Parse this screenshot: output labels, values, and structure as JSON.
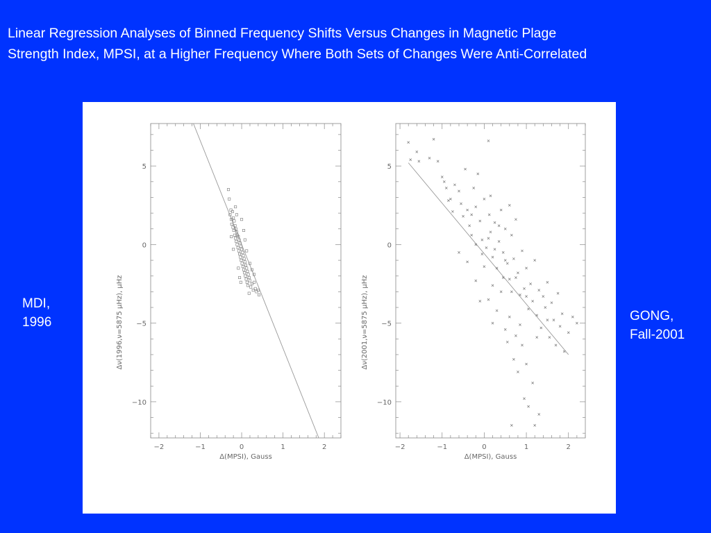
{
  "slide": {
    "title_line1": "Linear Regression Analyses of Binned Frequency Shifts Versus Changes in Magnetic Plage",
    "title_line2": "Strength Index, MPSI, at a Higher Frequency Where Both Sets of Changes Were Anti-Correlated",
    "left_label_line1": "MDI,",
    "left_label_line2": "1996",
    "right_label_line1": "GONG,",
    "right_label_line2": "Fall-2001",
    "background_color": "#0033FF",
    "text_color": "#FFFFFF"
  },
  "chart_data": [
    {
      "type": "scatter",
      "xlabel": "Δ(MPSI), Gauss",
      "ylabel": "Δν(1996,ν=5875 μHz), μHz",
      "xlim": [
        -2.2,
        2.4
      ],
      "ylim": [
        -12.3,
        7.7
      ],
      "x_ticks": [
        -2,
        -1,
        0,
        1,
        2
      ],
      "y_ticks": [
        5,
        0,
        -5,
        -10
      ],
      "x_tick_labels": [
        "−2",
        "−1",
        "0",
        "1",
        "2"
      ],
      "y_tick_labels": [
        "5",
        "0",
        "−5",
        "−10"
      ],
      "marker": "square",
      "fit_line": {
        "slope": -6.6,
        "intercept": 0.0
      },
      "points": [
        [
          -0.32,
          3.5
        ],
        [
          -0.3,
          2.9
        ],
        [
          -0.26,
          2.2
        ],
        [
          -0.28,
          1.9
        ],
        [
          -0.22,
          2.1
        ],
        [
          -0.25,
          1.6
        ],
        [
          -0.2,
          1.7
        ],
        [
          -0.24,
          1.3
        ],
        [
          -0.18,
          1.5
        ],
        [
          -0.21,
          1.1
        ],
        [
          -0.16,
          1.2
        ],
        [
          -0.19,
          0.9
        ],
        [
          -0.14,
          1.0
        ],
        [
          -0.17,
          0.6
        ],
        [
          -0.12,
          0.8
        ],
        [
          -0.15,
          0.4
        ],
        [
          -0.1,
          0.6
        ],
        [
          -0.13,
          0.2
        ],
        [
          -0.08,
          0.5
        ],
        [
          -0.11,
          0.0
        ],
        [
          -0.06,
          0.3
        ],
        [
          -0.09,
          -0.2
        ],
        [
          -0.04,
          0.1
        ],
        [
          -0.07,
          -0.4
        ],
        [
          -0.02,
          -0.1
        ],
        [
          -0.05,
          -0.6
        ],
        [
          0.0,
          -0.3
        ],
        [
          -0.03,
          -0.8
        ],
        [
          0.02,
          -0.5
        ],
        [
          -0.01,
          -1.0
        ],
        [
          0.04,
          -0.7
        ],
        [
          0.01,
          -1.2
        ],
        [
          0.06,
          -0.9
        ],
        [
          0.03,
          -1.4
        ],
        [
          0.08,
          -1.1
        ],
        [
          0.05,
          -1.6
        ],
        [
          0.1,
          -1.3
        ],
        [
          0.07,
          -1.8
        ],
        [
          0.12,
          -1.5
        ],
        [
          0.09,
          -2.0
        ],
        [
          0.14,
          -1.7
        ],
        [
          0.11,
          -2.2
        ],
        [
          0.16,
          -1.9
        ],
        [
          0.13,
          -2.4
        ],
        [
          0.18,
          -2.1
        ],
        [
          0.15,
          -2.6
        ],
        [
          0.2,
          -2.3
        ],
        [
          0.22,
          -2.7
        ],
        [
          0.25,
          -2.5
        ],
        [
          0.28,
          -2.9
        ],
        [
          0.3,
          -2.4
        ],
        [
          0.33,
          -2.8
        ],
        [
          0.36,
          -3.0
        ],
        [
          0.4,
          -2.9
        ],
        [
          0.42,
          -3.2
        ],
        [
          -0.05,
          -2.1
        ],
        [
          -0.25,
          0.5
        ],
        [
          -0.15,
          2.4
        ],
        [
          0.0,
          1.6
        ],
        [
          0.08,
          0.3
        ],
        [
          -0.2,
          -0.3
        ],
        [
          0.12,
          -0.4
        ],
        [
          0.2,
          -1.2
        ],
        [
          -0.02,
          -2.4
        ],
        [
          0.25,
          -1.6
        ],
        [
          -0.12,
          1.9
        ],
        [
          0.05,
          0.9
        ],
        [
          0.18,
          -3.1
        ],
        [
          -0.08,
          -1.5
        ],
        [
          0.3,
          -1.9
        ]
      ]
    },
    {
      "type": "scatter",
      "xlabel": "Δ(MPSI), Gauss",
      "ylabel": "Δν(2001,ν=5875 μHz), μHz",
      "xlim": [
        -2.1,
        2.4
      ],
      "ylim": [
        -12.3,
        7.7
      ],
      "x_ticks": [
        -2,
        -1,
        0,
        1,
        2
      ],
      "y_ticks": [
        5,
        0,
        -5,
        -10
      ],
      "x_tick_labels": [
        "−2",
        "−1",
        "0",
        "1",
        "2"
      ],
      "y_tick_labels": [
        "5",
        "0",
        "−5",
        "−10"
      ],
      "marker": "cross",
      "fit_line": {
        "x0": -1.8,
        "y0": 5.2,
        "x1": 2.0,
        "y1": -7.0
      },
      "points": [
        [
          -1.8,
          6.5
        ],
        [
          -1.75,
          5.4
        ],
        [
          -1.6,
          5.9
        ],
        [
          -1.55,
          5.3
        ],
        [
          -1.3,
          5.5
        ],
        [
          -1.2,
          6.7
        ],
        [
          -1.1,
          5.3
        ],
        [
          -1.0,
          4.3
        ],
        [
          -0.95,
          4.0
        ],
        [
          -0.9,
          3.6
        ],
        [
          -0.85,
          2.8
        ],
        [
          -0.8,
          2.9
        ],
        [
          -0.75,
          2.1
        ],
        [
          -0.7,
          3.8
        ],
        [
          -0.6,
          3.4
        ],
        [
          -0.55,
          2.6
        ],
        [
          -0.5,
          1.8
        ],
        [
          -0.45,
          4.8
        ],
        [
          -0.4,
          2.2
        ],
        [
          -0.35,
          1.2
        ],
        [
          -0.3,
          0.6
        ],
        [
          -0.25,
          3.6
        ],
        [
          -0.2,
          2.4
        ],
        [
          -0.15,
          4.5
        ],
        [
          -0.1,
          1.5
        ],
        [
          -0.05,
          0.3
        ],
        [
          0.0,
          2.9
        ],
        [
          0.05,
          -0.2
        ],
        [
          0.1,
          6.6
        ],
        [
          0.12,
          1.9
        ],
        [
          0.15,
          0.8
        ],
        [
          0.2,
          -0.8
        ],
        [
          0.25,
          1.4
        ],
        [
          0.3,
          -1.5
        ],
        [
          0.35,
          0.2
        ],
        [
          0.4,
          2.2
        ],
        [
          0.45,
          -0.5
        ],
        [
          0.5,
          1.0
        ],
        [
          0.55,
          -1.2
        ],
        [
          0.6,
          -2.2
        ],
        [
          0.65,
          0.6
        ],
        [
          0.7,
          -0.9
        ],
        [
          0.75,
          1.6
        ],
        [
          0.8,
          -1.8
        ],
        [
          0.85,
          -3.2
        ],
        [
          0.9,
          -0.4
        ],
        [
          0.95,
          -2.8
        ],
        [
          1.0,
          -1.5
        ],
        [
          1.05,
          -4.1
        ],
        [
          1.1,
          -2.5
        ],
        [
          1.15,
          -3.6
        ],
        [
          1.2,
          -1.0
        ],
        [
          1.25,
          -4.5
        ],
        [
          1.3,
          -2.9
        ],
        [
          1.35,
          -5.3
        ],
        [
          1.4,
          -3.3
        ],
        [
          1.45,
          -4.0
        ],
        [
          1.5,
          -2.4
        ],
        [
          1.55,
          -5.9
        ],
        [
          1.6,
          -3.7
        ],
        [
          1.65,
          -4.8
        ],
        [
          1.7,
          -6.4
        ],
        [
          1.75,
          -3.1
        ],
        [
          1.8,
          -5.2
        ],
        [
          1.85,
          -4.4
        ],
        [
          1.9,
          -6.8
        ],
        [
          2.0,
          -5.6
        ],
        [
          2.1,
          -4.6
        ],
        [
          2.2,
          -5.0
        ],
        [
          -0.6,
          -0.5
        ],
        [
          -0.4,
          -1.1
        ],
        [
          -0.2,
          -2.3
        ],
        [
          0.0,
          -1.4
        ],
        [
          0.1,
          -3.5
        ],
        [
          0.2,
          -2.6
        ],
        [
          0.3,
          -4.2
        ],
        [
          0.4,
          -3.0
        ],
        [
          0.5,
          -5.4
        ],
        [
          0.55,
          -6.2
        ],
        [
          0.6,
          -4.6
        ],
        [
          0.7,
          -7.3
        ],
        [
          0.75,
          -5.8
        ],
        [
          0.8,
          -8.1
        ],
        [
          0.9,
          -6.4
        ],
        [
          0.95,
          -9.8
        ],
        [
          1.0,
          -7.6
        ],
        [
          1.05,
          -10.3
        ],
        [
          1.15,
          -8.8
        ],
        [
          1.2,
          -11.5
        ],
        [
          0.65,
          -11.5
        ],
        [
          1.3,
          -10.8
        ],
        [
          0.2,
          -5.0
        ],
        [
          -0.1,
          -3.6
        ],
        [
          0.45,
          -2.1
        ],
        [
          0.65,
          -3.0
        ],
        [
          0.85,
          -5.1
        ],
        [
          -0.3,
          1.9
        ],
        [
          -0.05,
          -0.6
        ],
        [
          0.35,
          1.2
        ],
        [
          0.15,
          3.1
        ],
        [
          0.6,
          2.5
        ],
        [
          -0.2,
          0.0
        ],
        [
          0.25,
          -0.3
        ],
        [
          0.5,
          -1.0
        ],
        [
          0.75,
          -2.1
        ],
        [
          1.0,
          -3.3
        ],
        [
          1.25,
          -5.9
        ],
        [
          1.5,
          -4.8
        ],
        [
          0.1,
          0.4
        ]
      ]
    }
  ]
}
